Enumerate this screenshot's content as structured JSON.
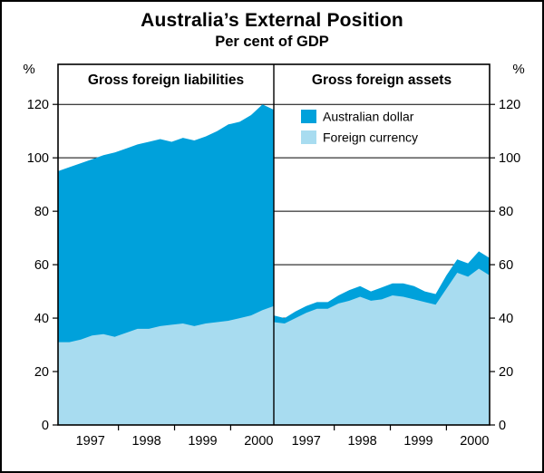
{
  "chart_data": {
    "type": "area",
    "stacked": true,
    "title": "Australia’s External Position",
    "subtitle": "Per cent of GDP",
    "unit": "%",
    "ylim": [
      0,
      135
    ],
    "yticks": [
      0,
      20,
      40,
      60,
      80,
      100,
      120
    ],
    "grid": true,
    "colors": {
      "australian_dollar": "#00A1DB",
      "foreign_currency": "#A8DCF0",
      "axis": "#000000"
    },
    "legend": {
      "position": "right-panel-top",
      "entries": [
        {
          "label": "Australian dollar",
          "color": "#00A1DB"
        },
        {
          "label": "Foreign currency",
          "color": "#A8DCF0"
        }
      ]
    },
    "panels": [
      {
        "label": "Gross foreign liabilities",
        "x_years": [
          "1997",
          "1998",
          "1999",
          "2000"
        ],
        "year_fractions": [
          0.15,
          0.41,
          0.67,
          0.93
        ],
        "series": [
          {
            "name": "Total gross foreign liabilities",
            "values": [
              95,
              96.5,
              98,
              99.5,
              101,
              102,
              103.5,
              105,
              106,
              107,
              106,
              107.5,
              106.5,
              108,
              110,
              112.5,
              113.5,
              116,
              120,
              118
            ]
          },
          {
            "name": "Foreign currency",
            "values": [
              31,
              31,
              32,
              33.5,
              34,
              33,
              34.5,
              36,
              36,
              37,
              37.5,
              38,
              37,
              38,
              38.5,
              39,
              40,
              41,
              43,
              44.5
            ]
          }
        ]
      },
      {
        "label": "Gross foreign assets",
        "x_years": [
          "1997",
          "1998",
          "1999",
          "2000"
        ],
        "year_fractions": [
          0.15,
          0.41,
          0.67,
          0.93
        ],
        "series": [
          {
            "name": "Total gross foreign assets",
            "values": [
              41,
              40,
              42.5,
              44.5,
              46,
              46,
              48.5,
              50.5,
              52,
              50,
              51.5,
              53,
              53,
              52,
              50,
              49,
              56,
              62,
              60.5,
              65,
              62.5
            ]
          },
          {
            "name": "Foreign currency",
            "values": [
              38.5,
              38,
              40,
              42,
              43.5,
              43.5,
              45.5,
              46.5,
              48,
              46.5,
              47,
              48.5,
              48,
              47,
              46,
              45,
              51,
              57,
              55.5,
              58.5,
              56
            ]
          }
        ]
      }
    ]
  }
}
